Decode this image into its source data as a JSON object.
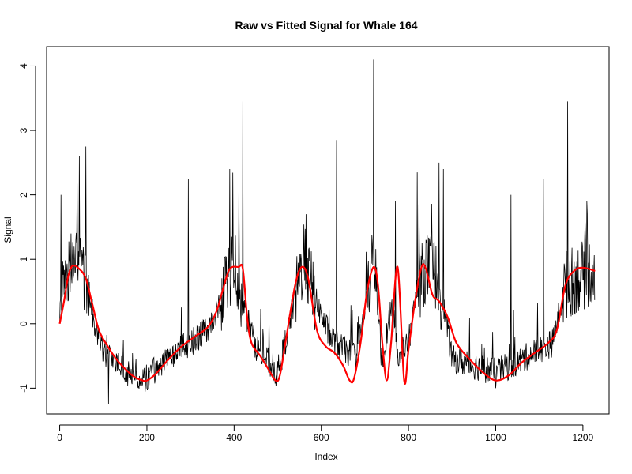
{
  "chart_data": {
    "type": "line",
    "title": "Raw vs Fitted Signal for Whale 164",
    "xlabel": "Index",
    "ylabel": "Signal",
    "xlim": [
      -30,
      1260
    ],
    "ylim": [
      -1.4,
      4.3
    ],
    "x_ticks": [
      0,
      200,
      400,
      600,
      800,
      1000,
      1200
    ],
    "x_tick_labels": [
      "0",
      "200",
      "400",
      "600",
      "800",
      "1000",
      "1200"
    ],
    "y_ticks": [
      -1,
      0,
      1,
      2,
      3,
      4
    ],
    "y_tick_labels": [
      "-1",
      "0",
      "1",
      "2",
      "3",
      "4"
    ],
    "grid": false,
    "legend": "none",
    "series": [
      {
        "style": "raw",
        "color": "#000000",
        "n_points": 1228,
        "envelope_x": [
          0,
          10,
          25,
          40,
          60,
          80,
          100,
          120,
          150,
          180,
          200,
          250,
          300,
          350,
          380,
          400,
          420,
          450,
          480,
          500,
          530,
          560,
          590,
          620,
          650,
          680,
          700,
          720,
          740,
          760,
          780,
          800,
          820,
          840,
          860,
          880,
          900,
          950,
          1000,
          1050,
          1100,
          1130,
          1160,
          1200,
          1228
        ],
        "envelope_y": [
          0.1,
          0.7,
          0.95,
          0.9,
          0.7,
          0.0,
          -0.4,
          -0.6,
          -0.75,
          -0.85,
          -0.85,
          -0.5,
          -0.3,
          0.0,
          0.6,
          1.0,
          0.3,
          -0.35,
          -0.6,
          -0.8,
          0.1,
          1.0,
          0.3,
          -0.2,
          -0.4,
          -0.5,
          0.2,
          1.1,
          -0.7,
          0.3,
          -0.6,
          -0.3,
          0.5,
          0.9,
          0.8,
          0.3,
          -0.55,
          -0.65,
          -0.75,
          -0.6,
          -0.4,
          -0.3,
          0.6,
          0.75,
          0.85
        ],
        "spikes": [
          [
            3,
            2.0
          ],
          [
            45,
            2.6
          ],
          [
            60,
            2.75
          ],
          [
            112,
            -1.25
          ],
          [
            200,
            -1.0
          ],
          [
            295,
            2.25
          ],
          [
            390,
            2.4
          ],
          [
            420,
            3.45
          ],
          [
            565,
            1.7
          ],
          [
            635,
            2.85
          ],
          [
            720,
            4.1
          ],
          [
            770,
            1.9
          ],
          [
            820,
            2.35
          ],
          [
            870,
            2.5
          ],
          [
            880,
            2.4
          ],
          [
            1000,
            -1.0
          ],
          [
            1035,
            2.0
          ],
          [
            1110,
            2.25
          ],
          [
            1165,
            3.45
          ]
        ]
      },
      {
        "style": "fitted",
        "color": "#ff0000",
        "x": [
          0,
          10,
          20,
          30,
          45,
          60,
          75,
          90,
          110,
          130,
          150,
          170,
          190,
          200,
          220,
          250,
          280,
          310,
          340,
          360,
          375,
          390,
          410,
          420,
          430,
          440,
          460,
          480,
          495,
          505,
          520,
          540,
          555,
          570,
          590,
          610,
          630,
          650,
          665,
          675,
          690,
          705,
          720,
          730,
          740,
          750,
          760,
          775,
          790,
          800,
          815,
          830,
          840,
          855,
          870,
          890,
          910,
          940,
          970,
          1000,
          1030,
          1060,
          1090,
          1120,
          1140,
          1160,
          1180,
          1200,
          1228
        ],
        "y": [
          0.0,
          0.35,
          0.75,
          0.9,
          0.85,
          0.7,
          0.3,
          -0.1,
          -0.35,
          -0.55,
          -0.7,
          -0.82,
          -0.88,
          -0.88,
          -0.78,
          -0.55,
          -0.35,
          -0.2,
          -0.05,
          0.2,
          0.55,
          0.85,
          0.88,
          0.85,
          0.1,
          -0.3,
          -0.5,
          -0.72,
          -0.88,
          -0.8,
          -0.2,
          0.6,
          0.88,
          0.7,
          -0.1,
          -0.35,
          -0.45,
          -0.65,
          -0.88,
          -0.85,
          -0.3,
          0.5,
          0.88,
          0.6,
          -0.3,
          -0.88,
          -0.3,
          0.88,
          -0.88,
          -0.4,
          0.35,
          0.88,
          0.85,
          0.45,
          0.35,
          0.1,
          -0.3,
          -0.55,
          -0.75,
          -0.88,
          -0.8,
          -0.6,
          -0.45,
          -0.3,
          -0.1,
          0.6,
          0.82,
          0.87,
          0.82
        ]
      }
    ]
  }
}
